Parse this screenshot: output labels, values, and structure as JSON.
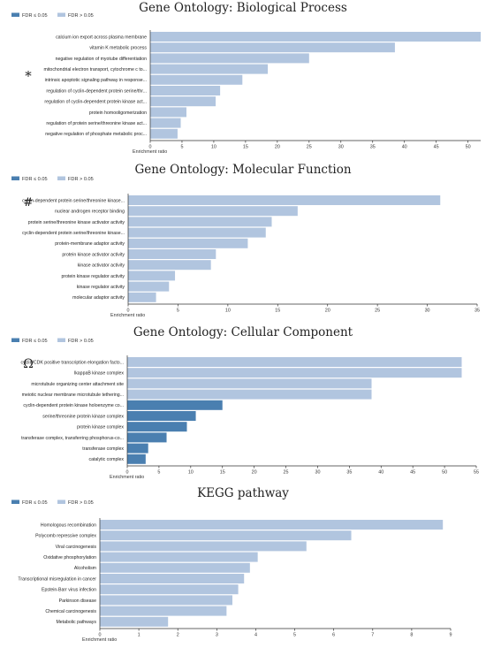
{
  "colors": {
    "sig": "#4a7fb0",
    "nonsig": "#b1c5df"
  },
  "legend": {
    "sig_label": "FDR ≤ 0.05",
    "nonsig_label": "FDR > 0.05"
  },
  "chart_data": [
    {
      "type": "bar",
      "orientation": "horizontal",
      "title": "Gene Ontology: Biological Process",
      "marker": "*",
      "xlabel": "Enrichment ratio",
      "xlim": [
        0,
        52
      ],
      "xticks": [
        0,
        5,
        10,
        15,
        20,
        25,
        30,
        35,
        40,
        45,
        50
      ],
      "categories": [
        "calcium ion export across plasma membrane",
        "vitamin K metabolic process",
        "negative regulation of myotube differentiation",
        "mitochondrial electron transport, cytochrome c to...",
        "intrinsic apoptotic signaling pathway in response...",
        "regulation of cyclin-dependent protein serine/thr...",
        "regulation of cyclin-dependent protein kinase act...",
        "protein homooligomerization",
        "regulation of protein serine/threonine kinase act...",
        "negative regulation of phosphate metabolic proc..."
      ],
      "values": [
        52,
        38.5,
        25,
        18.5,
        14.5,
        11,
        10.3,
        5.7,
        4.8,
        4.3
      ],
      "significant": [
        false,
        false,
        false,
        false,
        false,
        false,
        false,
        false,
        false,
        false
      ]
    },
    {
      "type": "bar",
      "orientation": "horizontal",
      "title": "Gene Ontology: Molecular Function",
      "marker": "#",
      "xlabel": "Enrichment ratio",
      "xlim": [
        0,
        35
      ],
      "xticks": [
        0,
        5,
        10,
        15,
        20,
        25,
        30,
        35
      ],
      "categories": [
        "cyclin-dependent protein serine/threonine kinase...",
        "nuclear androgen receptor binding",
        "protein serine/threonine kinase activator activity",
        "cyclin-dependent protein serine/threonine kinase...",
        "protein-membrane adaptor activity",
        "protein kinase activator activity",
        "kinase activator activity",
        "protein kinase regulator activity",
        "kinase regulator activity",
        "molecular adaptor activity"
      ],
      "values": [
        31.3,
        17,
        14.4,
        13.8,
        12,
        8.8,
        8.3,
        4.7,
        4.1,
        2.8
      ],
      "significant": [
        false,
        false,
        false,
        false,
        false,
        false,
        false,
        false,
        false,
        false
      ]
    },
    {
      "type": "bar",
      "orientation": "horizontal",
      "title": "Gene Ontology: Cellular Component",
      "marker": "Ω",
      "xlabel": "Enrichment ratio",
      "xlim": [
        0,
        55
      ],
      "xticks": [
        0,
        5,
        10,
        15,
        20,
        25,
        30,
        35,
        40,
        45,
        50,
        55
      ],
      "categories": [
        "cyclin/CDK positive transcription elongation facto...",
        "IkappaB kinase complex",
        "microtubule organizing center attachment site",
        "meiotic nuclear membrane microtubule tethering...",
        "cyclin-dependent protein kinase holoenzyme co...",
        "serine/threonine protein kinase complex",
        "protein kinase complex",
        "transferase complex, transferring phosphorus-co...",
        "transferase complex",
        "catalytic complex"
      ],
      "values": [
        52.7,
        52.7,
        38.5,
        38.5,
        15,
        10.8,
        9.4,
        6.2,
        3.3,
        2.9
      ],
      "significant": [
        false,
        false,
        false,
        false,
        true,
        true,
        true,
        true,
        true,
        true
      ]
    },
    {
      "type": "bar",
      "orientation": "horizontal",
      "title": "KEGG pathway",
      "marker": "",
      "xlabel": "Enrichment ratio",
      "xlim": [
        0,
        9
      ],
      "xticks": [
        0,
        1,
        2,
        3,
        4,
        5,
        6,
        7,
        8,
        9
      ],
      "categories": [
        "Homologous recombination",
        "Polycomb repressive complex",
        "Viral carcinogenesis",
        "Oxidative phosphorylation",
        "Alcoholism",
        "Transcriptional misregulation in cancer",
        "Epstein-Barr virus infection",
        "Parkinson disease",
        "Chemical carcinogenesis",
        "Metabolic pathways"
      ],
      "values": [
        8.8,
        6.45,
        5.3,
        4.05,
        3.85,
        3.7,
        3.55,
        3.4,
        3.25,
        1.75
      ],
      "significant": [
        false,
        false,
        false,
        false,
        false,
        false,
        false,
        false,
        false,
        false
      ]
    }
  ]
}
